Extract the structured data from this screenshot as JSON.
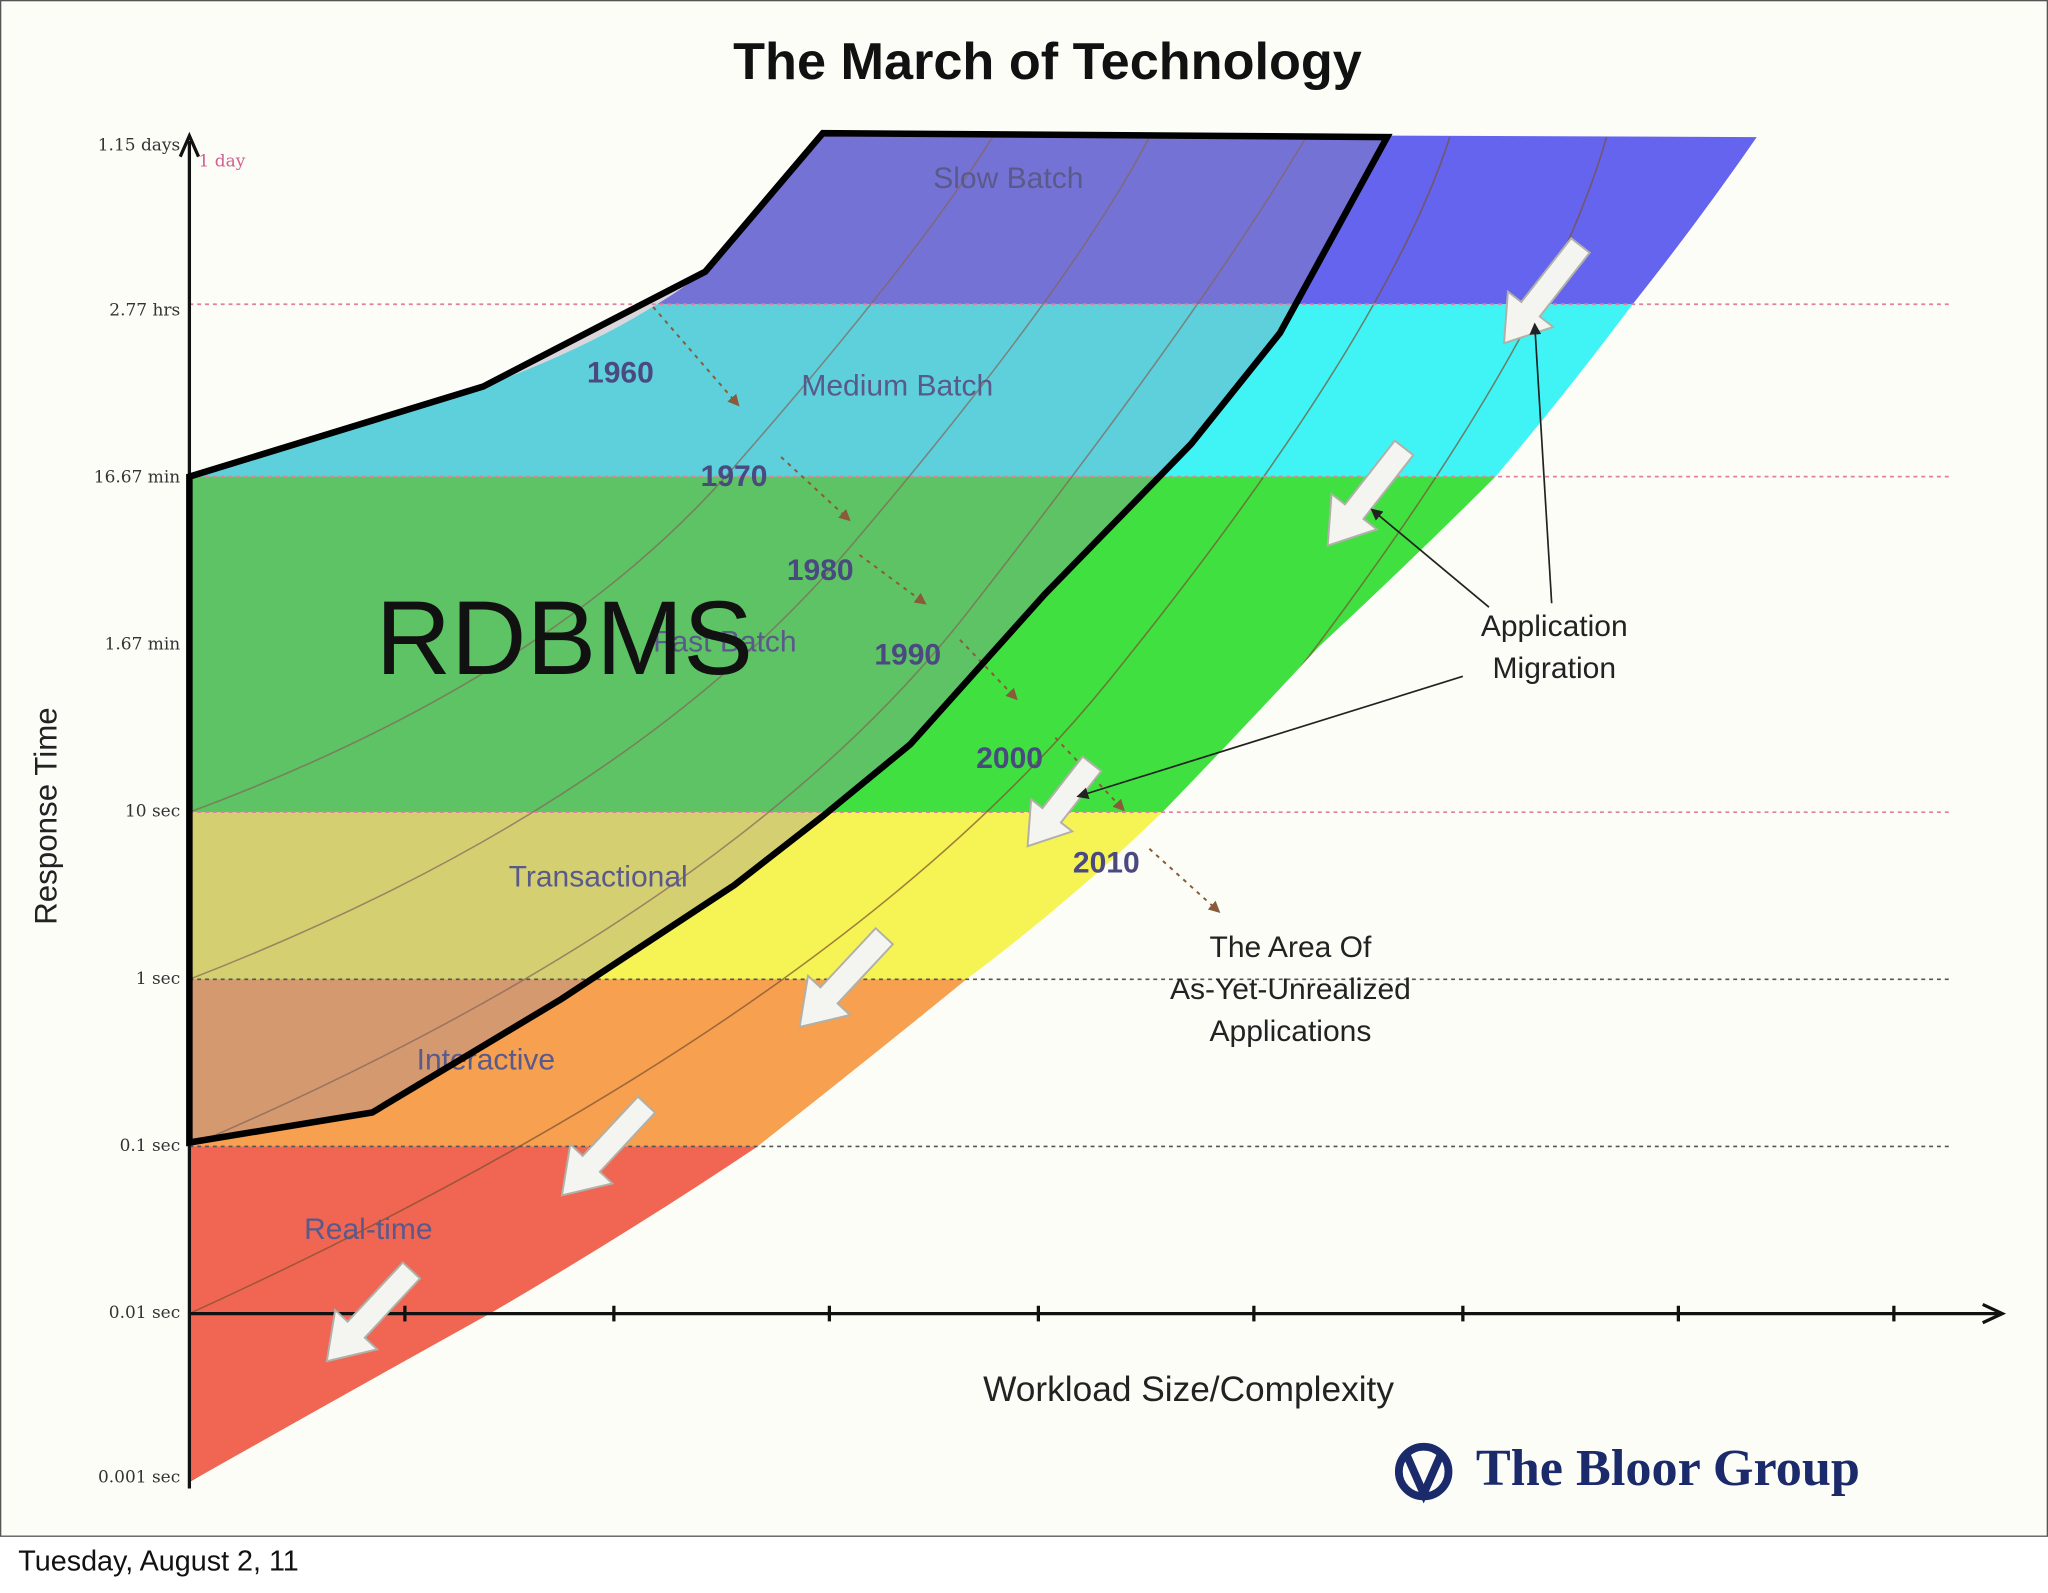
{
  "title": "The March of Technology",
  "y_axis_label": "Response Time",
  "y_ticks": [
    "1.15 days",
    "2.77 hrs",
    "16.67 min",
    "1.67 min",
    "10 sec",
    "1 sec",
    "0.1 sec",
    "0.01 sec",
    "0.001 sec"
  ],
  "one_day_marker": "1 day",
  "bands": [
    "Slow Batch",
    "Medium Batch",
    "Fast Batch",
    "Transactional",
    "Interactive",
    "Real-time"
  ],
  "decades": [
    "1960",
    "1970",
    "1980",
    "1990",
    "2000",
    "2010"
  ],
  "overlay_label": "RDBMS",
  "annotations": {
    "application_migration": [
      "Application",
      "Migration"
    ],
    "unrealized": [
      "The Area Of",
      "As-Yet-Unrealized",
      "Applications"
    ]
  },
  "x_axis_label": "Workload Size/Complexity",
  "logo": "The Bloor Group",
  "footer": "Tuesday, August 2, 11"
}
